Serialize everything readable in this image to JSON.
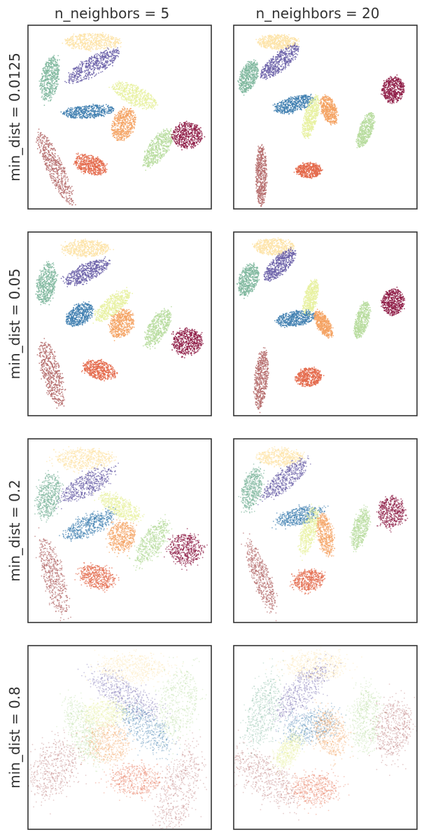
{
  "columns": [
    "n_neighbors = 5",
    "n_neighbors = 20"
  ],
  "rows": [
    "min_dist = 0.0125",
    "min_dist = 0.05",
    "min_dist = 0.2",
    "min_dist = 0.8"
  ],
  "colors": [
    "#9e0142",
    "#d53e4f",
    "#f46d43",
    "#fdae61",
    "#fee08b",
    "#e6f598",
    "#abdda4",
    "#66c2a5",
    "#3288bd",
    "#5e4fa2"
  ],
  "chart_data": {
    "type": "scatter",
    "grid": false,
    "legend": "none",
    "series_colors": {
      "dark-red": "#8e1b45",
      "rust": "#b46a6a",
      "orange-red": "#e4694a",
      "orange": "#f4a261",
      "cream": "#fde3a7",
      "yellow-green": "#e8f1a0",
      "light-green": "#b7dc9d",
      "teal": "#7fb79e",
      "blue": "#3f7fb0",
      "purple": "#6a5fa8"
    },
    "panels": [
      {
        "row": "min_dist = 0.0125",
        "col": "n_neighbors = 5",
        "alpha": 0.85,
        "spread": 0.15,
        "clusters": [
          {
            "color": "cream",
            "cx": 0.35,
            "cy": 0.09,
            "rx": 0.15,
            "ry": 0.045,
            "rot": 0
          },
          {
            "color": "purple",
            "cx": 0.36,
            "cy": 0.22,
            "rx": 0.16,
            "ry": 0.05,
            "rot": -30
          },
          {
            "color": "teal",
            "cx": 0.12,
            "cy": 0.29,
            "rx": 0.12,
            "ry": 0.05,
            "rot": -80
          },
          {
            "color": "yellow-green",
            "cx": 0.58,
            "cy": 0.38,
            "rx": 0.13,
            "ry": 0.05,
            "rot": 25
          },
          {
            "color": "blue",
            "cx": 0.33,
            "cy": 0.47,
            "rx": 0.14,
            "ry": 0.035,
            "rot": -5
          },
          {
            "color": "orange",
            "cx": 0.52,
            "cy": 0.54,
            "rx": 0.09,
            "ry": 0.06,
            "rot": -70
          },
          {
            "color": "light-green",
            "cx": 0.71,
            "cy": 0.67,
            "rx": 0.12,
            "ry": 0.05,
            "rot": -55
          },
          {
            "color": "dark-red",
            "cx": 0.87,
            "cy": 0.6,
            "rx": 0.08,
            "ry": 0.07,
            "rot": 0
          },
          {
            "color": "orange-red",
            "cx": 0.34,
            "cy": 0.76,
            "rx": 0.09,
            "ry": 0.05,
            "rot": 20
          },
          {
            "color": "rust",
            "cx": 0.15,
            "cy": 0.78,
            "rx": 0.22,
            "ry": 0.045,
            "rot": 65
          }
        ]
      },
      {
        "row": "min_dist = 0.0125",
        "col": "n_neighbors = 20",
        "alpha": 0.85,
        "spread": 0.15,
        "clusters": [
          {
            "color": "cream",
            "cx": 0.24,
            "cy": 0.09,
            "rx": 0.11,
            "ry": 0.04,
            "rot": 0
          },
          {
            "color": "purple",
            "cx": 0.25,
            "cy": 0.2,
            "rx": 0.13,
            "ry": 0.045,
            "rot": -40
          },
          {
            "color": "teal",
            "cx": 0.08,
            "cy": 0.28,
            "rx": 0.09,
            "ry": 0.045,
            "rot": -70
          },
          {
            "color": "dark-red",
            "cx": 0.87,
            "cy": 0.35,
            "rx": 0.07,
            "ry": 0.06,
            "rot": -80
          },
          {
            "color": "blue",
            "cx": 0.33,
            "cy": 0.43,
            "rx": 0.11,
            "ry": 0.04,
            "rot": -15
          },
          {
            "color": "yellow-green",
            "cx": 0.42,
            "cy": 0.5,
            "rx": 0.12,
            "ry": 0.035,
            "rot": -75
          },
          {
            "color": "orange",
            "cx": 0.52,
            "cy": 0.46,
            "rx": 0.08,
            "ry": 0.04,
            "rot": 70
          },
          {
            "color": "light-green",
            "cx": 0.72,
            "cy": 0.57,
            "rx": 0.1,
            "ry": 0.035,
            "rot": -70
          },
          {
            "color": "rust",
            "cx": 0.15,
            "cy": 0.82,
            "rx": 0.16,
            "ry": 0.03,
            "rot": -90
          },
          {
            "color": "orange-red",
            "cx": 0.41,
            "cy": 0.79,
            "rx": 0.07,
            "ry": 0.04,
            "rot": 0
          }
        ]
      },
      {
        "row": "min_dist = 0.05",
        "col": "n_neighbors = 5",
        "alpha": 0.85,
        "spread": 0.2,
        "clusters": [
          {
            "color": "cream",
            "cx": 0.32,
            "cy": 0.09,
            "rx": 0.12,
            "ry": 0.045,
            "rot": 0
          },
          {
            "color": "purple",
            "cx": 0.32,
            "cy": 0.22,
            "rx": 0.13,
            "ry": 0.045,
            "rot": -25
          },
          {
            "color": "teal",
            "cx": 0.1,
            "cy": 0.28,
            "rx": 0.11,
            "ry": 0.05,
            "rot": -80
          },
          {
            "color": "yellow-green",
            "cx": 0.46,
            "cy": 0.4,
            "rx": 0.12,
            "ry": 0.045,
            "rot": -40
          },
          {
            "color": "blue",
            "cx": 0.28,
            "cy": 0.45,
            "rx": 0.08,
            "ry": 0.05,
            "rot": -35
          },
          {
            "color": "orange",
            "cx": 0.51,
            "cy": 0.5,
            "rx": 0.08,
            "ry": 0.06,
            "rot": -60
          },
          {
            "color": "light-green",
            "cx": 0.71,
            "cy": 0.52,
            "rx": 0.11,
            "ry": 0.05,
            "rot": -60
          },
          {
            "color": "dark-red",
            "cx": 0.87,
            "cy": 0.6,
            "rx": 0.08,
            "ry": 0.07,
            "rot": 0
          },
          {
            "color": "orange-red",
            "cx": 0.39,
            "cy": 0.75,
            "rx": 0.09,
            "ry": 0.05,
            "rot": 15
          },
          {
            "color": "rust",
            "cx": 0.13,
            "cy": 0.77,
            "rx": 0.18,
            "ry": 0.05,
            "rot": 75
          }
        ]
      },
      {
        "row": "min_dist = 0.05",
        "col": "n_neighbors = 20",
        "alpha": 0.85,
        "spread": 0.15,
        "clusters": [
          {
            "color": "cream",
            "cx": 0.22,
            "cy": 0.08,
            "rx": 0.11,
            "ry": 0.045,
            "rot": 0
          },
          {
            "color": "purple",
            "cx": 0.25,
            "cy": 0.18,
            "rx": 0.11,
            "ry": 0.045,
            "rot": -45
          },
          {
            "color": "teal",
            "cx": 0.08,
            "cy": 0.26,
            "rx": 0.09,
            "ry": 0.05,
            "rot": -70
          },
          {
            "color": "dark-red",
            "cx": 0.87,
            "cy": 0.38,
            "rx": 0.07,
            "ry": 0.06,
            "rot": -80
          },
          {
            "color": "yellow-green",
            "cx": 0.42,
            "cy": 0.36,
            "rx": 0.1,
            "ry": 0.035,
            "rot": -75
          },
          {
            "color": "blue",
            "cx": 0.34,
            "cy": 0.47,
            "rx": 0.11,
            "ry": 0.04,
            "rot": -10
          },
          {
            "color": "orange",
            "cx": 0.49,
            "cy": 0.5,
            "rx": 0.08,
            "ry": 0.035,
            "rot": 60
          },
          {
            "color": "light-green",
            "cx": 0.7,
            "cy": 0.48,
            "rx": 0.1,
            "ry": 0.035,
            "rot": -75
          },
          {
            "color": "rust",
            "cx": 0.15,
            "cy": 0.8,
            "rx": 0.16,
            "ry": 0.035,
            "rot": -85
          },
          {
            "color": "orange-red",
            "cx": 0.41,
            "cy": 0.79,
            "rx": 0.07,
            "ry": 0.05,
            "rot": -10
          }
        ]
      },
      {
        "row": "min_dist = 0.2",
        "col": "n_neighbors = 5",
        "alpha": 0.65,
        "spread": 0.35,
        "clusters": [
          {
            "color": "cream",
            "cx": 0.31,
            "cy": 0.11,
            "rx": 0.15,
            "ry": 0.055,
            "rot": 0
          },
          {
            "color": "purple",
            "cx": 0.32,
            "cy": 0.25,
            "rx": 0.16,
            "ry": 0.055,
            "rot": -30
          },
          {
            "color": "teal",
            "cx": 0.11,
            "cy": 0.31,
            "rx": 0.12,
            "ry": 0.06,
            "rot": -80
          },
          {
            "color": "yellow-green",
            "cx": 0.5,
            "cy": 0.37,
            "rx": 0.12,
            "ry": 0.05,
            "rot": 30
          },
          {
            "color": "blue",
            "cx": 0.33,
            "cy": 0.47,
            "rx": 0.14,
            "ry": 0.05,
            "rot": -25
          },
          {
            "color": "orange",
            "cx": 0.51,
            "cy": 0.53,
            "rx": 0.08,
            "ry": 0.07,
            "rot": -70
          },
          {
            "color": "light-green",
            "cx": 0.68,
            "cy": 0.56,
            "rx": 0.13,
            "ry": 0.055,
            "rot": -55
          },
          {
            "color": "dark-red",
            "cx": 0.86,
            "cy": 0.6,
            "rx": 0.09,
            "ry": 0.08,
            "rot": 0
          },
          {
            "color": "orange-red",
            "cx": 0.38,
            "cy": 0.75,
            "rx": 0.1,
            "ry": 0.06,
            "rot": 15
          },
          {
            "color": "rust",
            "cx": 0.14,
            "cy": 0.75,
            "rx": 0.21,
            "ry": 0.055,
            "rot": 75
          }
        ]
      },
      {
        "row": "min_dist = 0.2",
        "col": "n_neighbors = 20",
        "alpha": 0.65,
        "spread": 0.3,
        "clusters": [
          {
            "color": "cream",
            "cx": 0.25,
            "cy": 0.1,
            "rx": 0.12,
            "ry": 0.045,
            "rot": 0
          },
          {
            "color": "purple",
            "cx": 0.28,
            "cy": 0.22,
            "rx": 0.15,
            "ry": 0.05,
            "rot": -40
          },
          {
            "color": "teal",
            "cx": 0.1,
            "cy": 0.27,
            "rx": 0.11,
            "ry": 0.05,
            "rot": -75
          },
          {
            "color": "dark-red",
            "cx": 0.86,
            "cy": 0.4,
            "rx": 0.08,
            "ry": 0.07,
            "rot": -80
          },
          {
            "color": "blue",
            "cx": 0.36,
            "cy": 0.42,
            "rx": 0.13,
            "ry": 0.045,
            "rot": -15
          },
          {
            "color": "yellow-green",
            "cx": 0.41,
            "cy": 0.5,
            "rx": 0.13,
            "ry": 0.04,
            "rot": -75
          },
          {
            "color": "orange",
            "cx": 0.5,
            "cy": 0.52,
            "rx": 0.11,
            "ry": 0.04,
            "rot": 80
          },
          {
            "color": "light-green",
            "cx": 0.69,
            "cy": 0.49,
            "rx": 0.11,
            "ry": 0.04,
            "rot": -75
          },
          {
            "color": "rust",
            "cx": 0.15,
            "cy": 0.75,
            "rx": 0.19,
            "ry": 0.045,
            "rot": 70
          },
          {
            "color": "orange-red",
            "cx": 0.41,
            "cy": 0.77,
            "rx": 0.08,
            "ry": 0.055,
            "rot": -10
          }
        ]
      },
      {
        "row": "min_dist = 0.8",
        "col": "n_neighbors = 5",
        "alpha": 0.35,
        "spread": 0.6,
        "clusters": [
          {
            "color": "cream",
            "cx": 0.57,
            "cy": 0.12,
            "rx": 0.18,
            "ry": 0.07,
            "rot": 0
          },
          {
            "color": "purple",
            "cx": 0.53,
            "cy": 0.27,
            "rx": 0.2,
            "ry": 0.07,
            "rot": 30
          },
          {
            "color": "light-green",
            "cx": 0.82,
            "cy": 0.31,
            "rx": 0.18,
            "ry": 0.1,
            "rot": -80
          },
          {
            "color": "light-green",
            "cx": 0.3,
            "cy": 0.46,
            "rx": 0.17,
            "ry": 0.07,
            "rot": 70
          },
          {
            "color": "orange",
            "cx": 0.44,
            "cy": 0.53,
            "rx": 0.11,
            "ry": 0.1,
            "rot": 0
          },
          {
            "color": "blue",
            "cx": 0.64,
            "cy": 0.45,
            "rx": 0.16,
            "ry": 0.08,
            "rot": 45
          },
          {
            "color": "yellow-green",
            "cx": 0.42,
            "cy": 0.37,
            "rx": 0.12,
            "ry": 0.07,
            "rot": -10
          },
          {
            "color": "rust",
            "cx": 0.14,
            "cy": 0.67,
            "rx": 0.16,
            "ry": 0.11,
            "rot": -60
          },
          {
            "color": "orange-red",
            "cx": 0.59,
            "cy": 0.73,
            "rx": 0.13,
            "ry": 0.08,
            "rot": 0
          },
          {
            "color": "rust",
            "cx": 0.82,
            "cy": 0.79,
            "rx": 0.23,
            "ry": 0.09,
            "rot": -70
          }
        ]
      },
      {
        "row": "min_dist = 0.8",
        "col": "n_neighbors = 20",
        "alpha": 0.35,
        "spread": 0.6,
        "clusters": [
          {
            "color": "cream",
            "cx": 0.45,
            "cy": 0.11,
            "rx": 0.16,
            "ry": 0.07,
            "rot": 0
          },
          {
            "color": "purple",
            "cx": 0.37,
            "cy": 0.25,
            "rx": 0.18,
            "ry": 0.07,
            "rot": -45
          },
          {
            "color": "teal",
            "cx": 0.16,
            "cy": 0.36,
            "rx": 0.19,
            "ry": 0.08,
            "rot": -75
          },
          {
            "color": "blue",
            "cx": 0.42,
            "cy": 0.44,
            "rx": 0.14,
            "ry": 0.08,
            "rot": -20
          },
          {
            "color": "orange",
            "cx": 0.53,
            "cy": 0.48,
            "rx": 0.12,
            "ry": 0.08,
            "rot": 70
          },
          {
            "color": "light-green",
            "cx": 0.72,
            "cy": 0.4,
            "rx": 0.16,
            "ry": 0.07,
            "rot": -85
          },
          {
            "color": "rust",
            "cx": 0.87,
            "cy": 0.45,
            "rx": 0.15,
            "ry": 0.09,
            "rot": -80
          },
          {
            "color": "rust",
            "cx": 0.17,
            "cy": 0.72,
            "rx": 0.2,
            "ry": 0.09,
            "rot": 40
          },
          {
            "color": "orange-red",
            "cx": 0.44,
            "cy": 0.78,
            "rx": 0.12,
            "ry": 0.08,
            "rot": 0
          },
          {
            "color": "yellow-green",
            "cx": 0.3,
            "cy": 0.57,
            "rx": 0.1,
            "ry": 0.05,
            "rot": -60
          }
        ]
      }
    ]
  }
}
